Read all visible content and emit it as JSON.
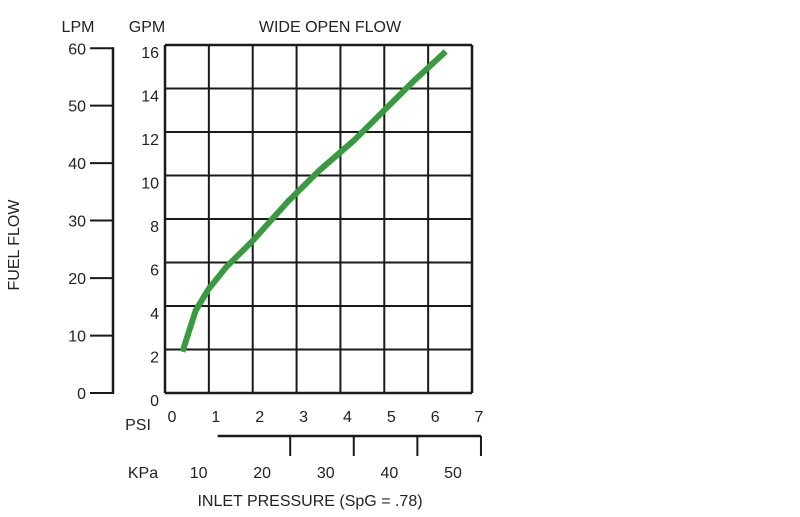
{
  "chart_data": {
    "type": "line",
    "title": "WIDE OPEN FLOW",
    "ylabel": "FUEL FLOW",
    "xlabel": "INLET PRESSURE (SpG = .78)",
    "x_unit_primary": "PSI",
    "x_unit_secondary": "KPa",
    "y_unit_primary": "GPM",
    "y_unit_secondary": "LPM",
    "xlim": [
      0,
      7
    ],
    "ylim": [
      0,
      16
    ],
    "x_ticks": [
      "0",
      "1",
      "2",
      "3",
      "4",
      "5",
      "6",
      "7"
    ],
    "y_ticks": [
      "0",
      "2",
      "4",
      "6",
      "8",
      "10",
      "12",
      "14",
      "16"
    ],
    "kpa_ticks": [
      {
        "label": "10",
        "psi": 1.45
      },
      {
        "label": "20",
        "psi": 2.9
      },
      {
        "label": "30",
        "psi": 4.35
      },
      {
        "label": "40",
        "psi": 5.8
      },
      {
        "label": "50",
        "psi": 7.25
      }
    ],
    "kpa_labels": [
      "10",
      "20",
      "30",
      "40",
      "50"
    ],
    "lpm_ticks": [
      {
        "label": "0",
        "gpm": 0
      },
      {
        "label": "10",
        "gpm": 2.64
      },
      {
        "label": "20",
        "gpm": 5.28
      },
      {
        "label": "30",
        "gpm": 7.93
      },
      {
        "label": "40",
        "gpm": 10.57
      },
      {
        "label": "50",
        "gpm": 13.21
      },
      {
        "label": "60",
        "gpm": 15.85
      }
    ],
    "grid": true,
    "line_color": "#3a9a3f",
    "series": [
      {
        "x": [
          0.4,
          0.7,
          1.0,
          1.4,
          2.0,
          2.8,
          3.5,
          4.3,
          5.0,
          5.7,
          6.4
        ],
        "y": [
          1.9,
          3.8,
          4.8,
          5.8,
          7.0,
          8.8,
          10.2,
          11.6,
          13.0,
          14.4,
          15.7
        ]
      }
    ]
  }
}
